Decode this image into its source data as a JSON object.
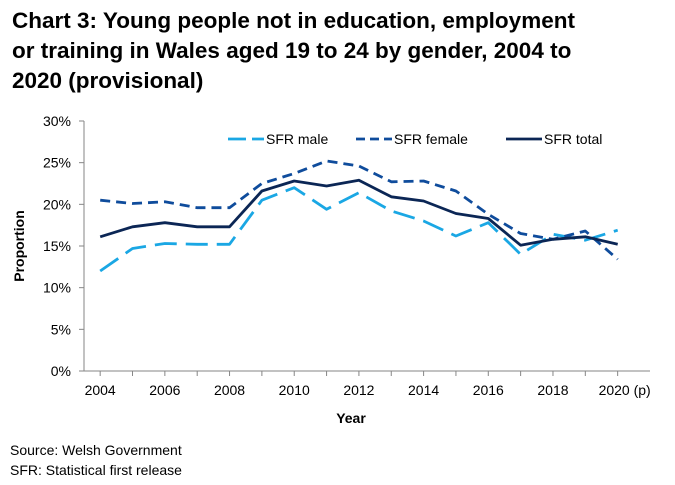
{
  "title_lines": [
    "Chart 3: Young people not in education, employment",
    "or training in Wales aged 19 to 24 by gender, 2004 to",
    "2020 (provisional)"
  ],
  "footer": {
    "source": "Source: Welsh Government",
    "note": "SFR: Statistical first release"
  },
  "chart_data": {
    "type": "line",
    "title": "Chart 3: Young people not in education, employment or training in Wales aged 19 to 24 by gender, 2004 to 2020 (provisional)",
    "xlabel": "Year",
    "ylabel": "Proportion",
    "x": [
      2004,
      2005,
      2006,
      2007,
      2008,
      2009,
      2010,
      2011,
      2012,
      2013,
      2014,
      2015,
      2016,
      2017,
      2018,
      2019,
      2020
    ],
    "x_tick_labels": [
      "2004",
      "2006",
      "2008",
      "2010",
      "2012",
      "2014",
      "2016",
      "2018",
      "2020 (p)"
    ],
    "y_tick_labels": [
      "0%",
      "5%",
      "10%",
      "15%",
      "20%",
      "25%",
      "30%"
    ],
    "ylim": [
      0,
      30
    ],
    "grid": false,
    "legend_position": "top",
    "series": [
      {
        "name": "SFR male",
        "color": "#1aa7e4",
        "style": "long-dash",
        "values": [
          12.0,
          14.7,
          15.3,
          15.2,
          15.2,
          20.5,
          22.0,
          19.4,
          21.4,
          19.2,
          18.0,
          16.2,
          17.8,
          14.0,
          16.4,
          15.7,
          16.9
        ]
      },
      {
        "name": "SFR female",
        "color": "#0f4c9c",
        "style": "dash",
        "values": [
          20.5,
          20.1,
          20.3,
          19.6,
          19.6,
          22.5,
          23.7,
          25.2,
          24.6,
          22.7,
          22.8,
          21.6,
          18.8,
          16.5,
          15.8,
          16.8,
          13.4
        ]
      },
      {
        "name": "SFR total",
        "color": "#0b2655",
        "style": "solid",
        "values": [
          16.1,
          17.3,
          17.8,
          17.3,
          17.3,
          21.6,
          22.8,
          22.2,
          22.9,
          20.9,
          20.4,
          18.9,
          18.3,
          15.1,
          15.8,
          16.1,
          15.2
        ]
      }
    ]
  }
}
